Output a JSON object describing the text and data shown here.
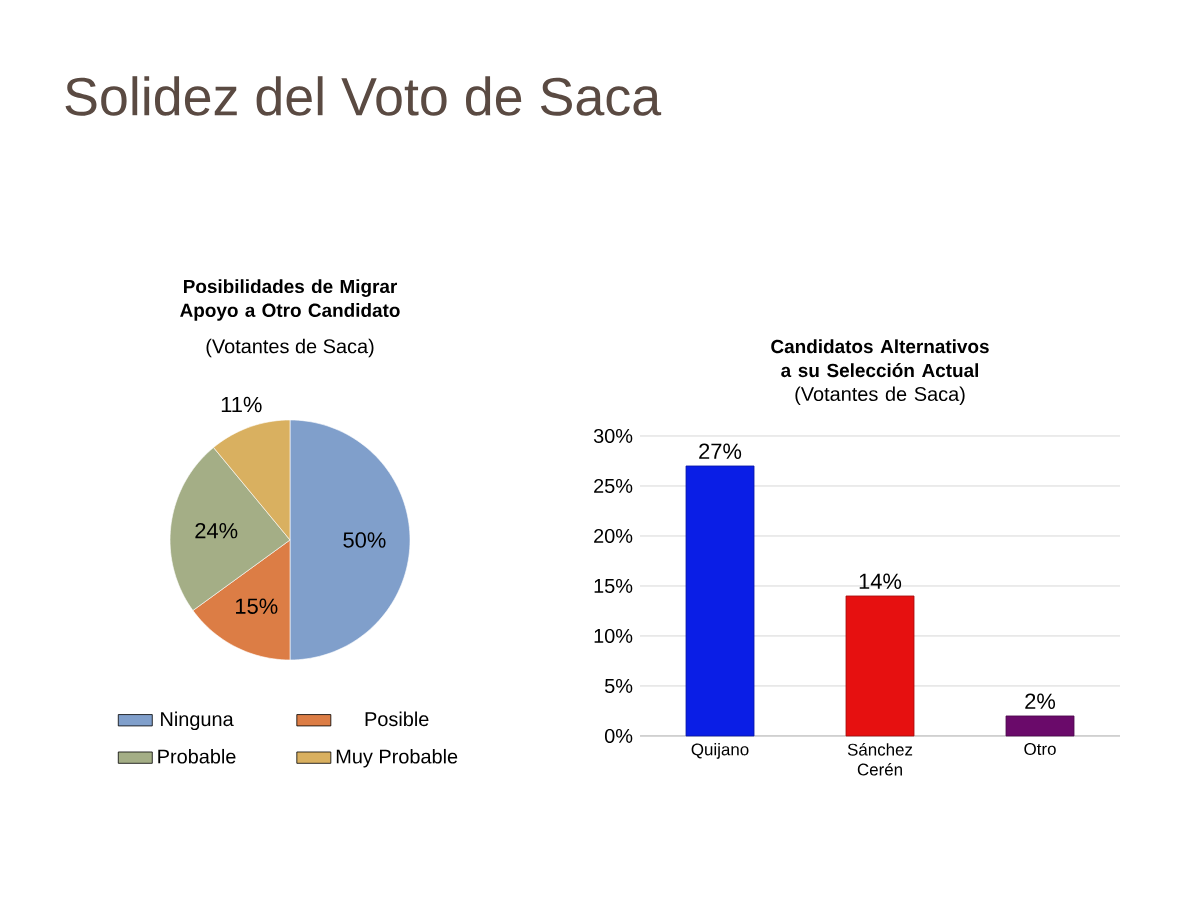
{
  "chart_data": [
    {
      "type": "pie",
      "title": "Posibilidades de Migrar Apoyo a Otro Candidato",
      "subtitle": "(Votantes de Saca)",
      "annotations": [
        "Solidez del Voto de Saca"
      ],
      "categories": [
        "Ninguna",
        "Posible",
        "Probable",
        "Muy Probable"
      ],
      "values": [
        50,
        15,
        24,
        11
      ],
      "colors": [
        "#809fcb",
        "#dc7d45",
        "#a4ae86",
        "#d9b060"
      ],
      "value_labels": [
        "50%",
        "15%",
        "24%",
        "11%"
      ],
      "legend": "bottom"
    },
    {
      "type": "bar",
      "title": "Candidatos Alternativos a su Selección Actual",
      "subtitle": "(Votantes de Saca)",
      "categories": [
        "Quijano",
        "Sánchez Cerén",
        "Otro"
      ],
      "values": [
        27,
        14,
        2
      ],
      "colors": [
        "#0a1ee6",
        "#e61010",
        "#6a0a6a"
      ],
      "value_labels": [
        "27%",
        "14%",
        "2%"
      ],
      "ylim": [
        0,
        30
      ],
      "yticks": [
        {
          "value": 0,
          "label": "0%"
        },
        {
          "value": 5,
          "label": "5%"
        },
        {
          "value": 10,
          "label": "10%"
        },
        {
          "value": 15,
          "label": "15%"
        },
        {
          "value": 20,
          "label": "20%"
        },
        {
          "value": 25,
          "label": "25%"
        },
        {
          "value": 30,
          "label": "30%"
        }
      ],
      "grid": "y",
      "legend": false
    }
  ]
}
